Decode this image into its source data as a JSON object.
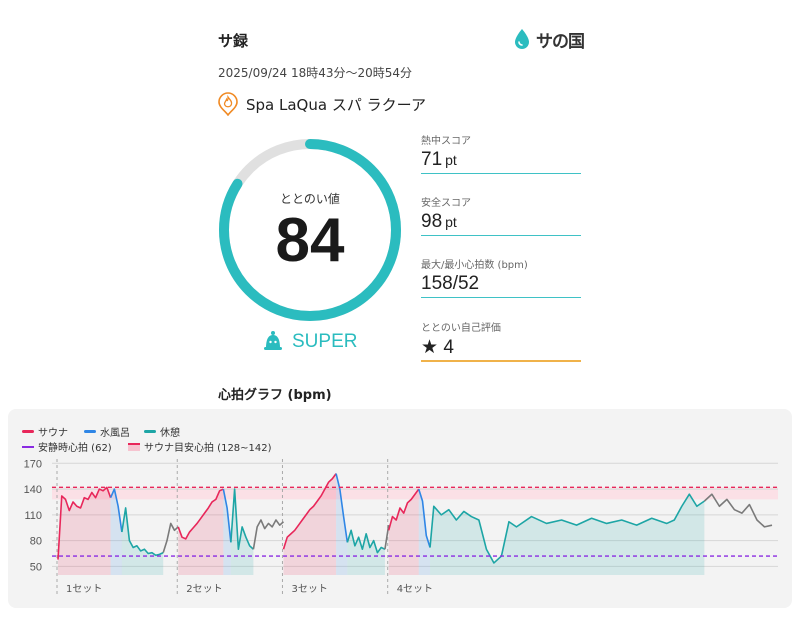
{
  "header": {
    "title": "サ録",
    "logo_text": "サの国",
    "datetime": "2025/09/24 18時43分～20時54分"
  },
  "facility": {
    "name": "Spa LaQua スパ ラクーア",
    "icon": "flame-pin-icon"
  },
  "score": {
    "label": "ととのい値",
    "value": "84",
    "fraction": 0.84,
    "rank": "SUPER",
    "rank_icon": "bell-icon",
    "colors": {
      "accent": "#2bbcbf",
      "track": "#e0e0e0"
    }
  },
  "metrics": [
    {
      "label": "熱中スコア",
      "value": "71",
      "unit": "pt"
    },
    {
      "label": "安全スコア",
      "value": "98",
      "unit": "pt"
    },
    {
      "label": "最大/最小心拍数 (bpm)",
      "value": "158/52",
      "unit": ""
    },
    {
      "label": "ととのい自己評価",
      "value": "4",
      "unit": "",
      "icon": "star-icon"
    }
  ],
  "graph": {
    "title": "心拍グラフ (bpm)",
    "legend": {
      "sauna": "サウナ",
      "water": "水風呂",
      "rest": "休憩",
      "resting_hr": "安静時心拍 (62)",
      "target_hr": "サウナ目安心拍 (128~142)"
    },
    "colors": {
      "sauna": "#e8275a",
      "water": "#2f86e6",
      "rest": "#1da5a5",
      "other": "#7a7a7a",
      "resting": "#8a2be2",
      "target": "#e8275a"
    }
  },
  "chart_data": {
    "type": "line",
    "ylim": [
      40,
      175
    ],
    "yticks": [
      "170",
      "140",
      "110",
      "80",
      "50"
    ],
    "ytick_values": [
      170,
      140,
      110,
      80,
      50
    ],
    "resting_hr": 62,
    "target_band": [
      128,
      142
    ],
    "sets": [
      "1セット",
      "2セット",
      "3セット",
      "4セット"
    ],
    "series": [
      {
        "name": "サウナ",
        "kind": "sauna",
        "x": [
          0,
          1,
          2,
          3,
          4,
          5,
          6,
          7,
          8,
          9,
          10,
          11,
          12,
          13,
          14
        ],
        "y": [
          58,
          132,
          128,
          115,
          125,
          120,
          118,
          130,
          128,
          136,
          130,
          140,
          138,
          142,
          130
        ]
      },
      {
        "name": "水風呂",
        "kind": "water",
        "x": [
          14,
          15,
          16,
          17
        ],
        "y": [
          130,
          140,
          120,
          90
        ]
      },
      {
        "name": "休憩",
        "kind": "rest",
        "x": [
          17,
          18,
          19,
          20,
          21,
          22,
          23,
          24,
          25,
          26,
          27,
          28
        ],
        "y": [
          90,
          118,
          80,
          72,
          74,
          68,
          70,
          65,
          66,
          63,
          64,
          66
        ]
      },
      {
        "name": "",
        "kind": "other",
        "x": [
          28,
          29,
          30,
          31,
          32
        ],
        "y": [
          66,
          80,
          100,
          92,
          96
        ]
      },
      {
        "name": "サウナ",
        "kind": "sauna",
        "x": [
          32,
          33,
          34,
          35,
          36,
          37,
          38,
          39,
          40,
          41,
          42,
          43,
          44
        ],
        "y": [
          96,
          84,
          82,
          90,
          95,
          100,
          106,
          112,
          118,
          125,
          128,
          138,
          140
        ]
      },
      {
        "name": "水風呂",
        "kind": "water",
        "x": [
          44,
          45,
          46
        ],
        "y": [
          140,
          118,
          78
        ]
      },
      {
        "name": "休憩",
        "kind": "rest",
        "x": [
          46,
          47,
          48,
          49,
          50,
          51,
          52
        ],
        "y": [
          78,
          140,
          70,
          96,
          84,
          74,
          70
        ]
      },
      {
        "name": "",
        "kind": "other",
        "x": [
          52,
          53,
          54,
          55,
          56,
          57,
          58,
          59,
          60
        ],
        "y": [
          70,
          96,
          104,
          94,
          100,
          96,
          104,
          98,
          102
        ]
      },
      {
        "name": "サウナ",
        "kind": "sauna",
        "x": [
          60,
          61,
          62,
          63,
          64,
          65,
          66,
          67,
          68,
          69,
          70,
          71,
          72,
          73,
          74
        ],
        "y": [
          70,
          84,
          88,
          92,
          98,
          104,
          110,
          116,
          120,
          126,
          132,
          140,
          148,
          152,
          158
        ]
      },
      {
        "name": "水風呂",
        "kind": "water",
        "x": [
          74,
          75,
          76,
          77
        ],
        "y": [
          158,
          140,
          108,
          78
        ]
      },
      {
        "name": "休憩",
        "kind": "rest",
        "x": [
          77,
          78,
          79,
          80,
          81,
          82,
          83,
          84,
          85,
          86,
          87
        ],
        "y": [
          78,
          92,
          74,
          84,
          70,
          88,
          72,
          80,
          66,
          72,
          70
        ]
      },
      {
        "name": "",
        "kind": "other",
        "x": [
          87,
          88
        ],
        "y": [
          70,
          98
        ]
      },
      {
        "name": "サウナ",
        "kind": "sauna",
        "x": [
          88,
          89,
          90,
          91,
          92,
          93,
          94,
          95,
          96
        ],
        "y": [
          92,
          108,
          104,
          118,
          112,
          124,
          128,
          134,
          140
        ]
      },
      {
        "name": "水風呂",
        "kind": "water",
        "x": [
          96,
          97,
          98,
          99
        ],
        "y": [
          140,
          126,
          86,
          72
        ]
      },
      {
        "name": "休憩",
        "kind": "rest",
        "x": [
          99,
          100,
          102,
          104,
          106,
          108,
          110,
          112,
          114,
          116,
          118,
          120,
          122,
          126,
          130,
          134,
          138,
          142,
          146,
          150,
          154,
          158,
          162,
          164,
          166,
          168,
          170,
          172
        ],
        "y": [
          72,
          120,
          110,
          116,
          104,
          114,
          108,
          104,
          70,
          54,
          62,
          102,
          96,
          108,
          100,
          104,
          98,
          106,
          100,
          104,
          98,
          106,
          100,
          104,
          120,
          134,
          120,
          126
        ]
      },
      {
        "name": "",
        "kind": "other",
        "x": [
          172,
          174,
          176,
          178,
          180,
          182,
          184,
          186,
          188,
          190
        ],
        "y": [
          126,
          134,
          120,
          128,
          116,
          112,
          122,
          104,
          96,
          98
        ]
      }
    ]
  }
}
